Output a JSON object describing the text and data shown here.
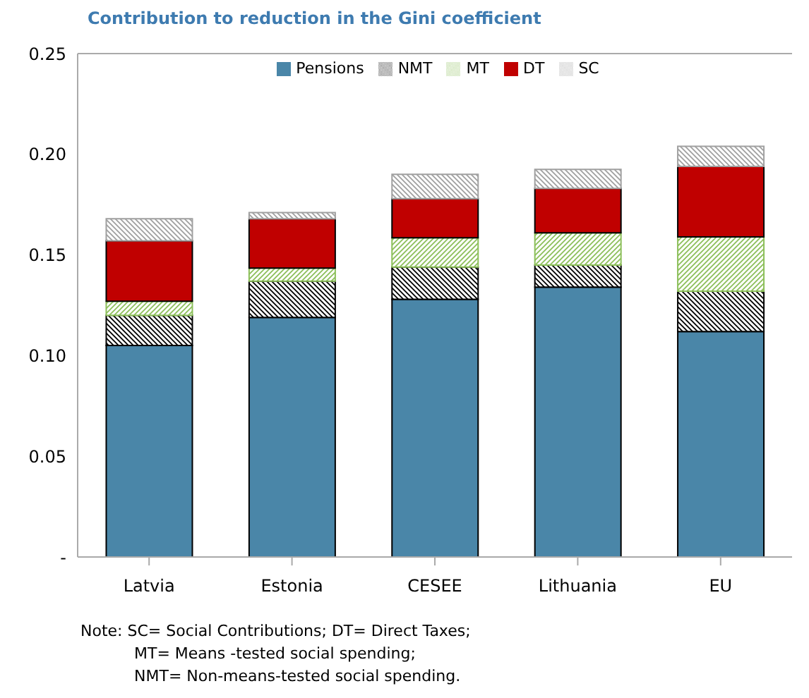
{
  "chart_data": {
    "type": "bar",
    "title": "Contribution to reduction in the Gini coefficient",
    "categories": [
      "Latvia",
      "Estonia",
      "CESEE",
      "Lithuania",
      "EU"
    ],
    "stacked": true,
    "series": [
      {
        "name": "Pensions",
        "color": "#4a86a8",
        "values": [
          0.105,
          0.119,
          0.128,
          0.134,
          0.112
        ]
      },
      {
        "name": "NMT",
        "color": "#000000",
        "values": [
          0.015,
          0.018,
          0.016,
          0.011,
          0.02
        ]
      },
      {
        "name": "MT",
        "color": "#8cbf5a",
        "values": [
          0.007,
          0.0065,
          0.0145,
          0.016,
          0.027
        ]
      },
      {
        "name": "DT",
        "color": "#c00000",
        "values": [
          0.03,
          0.0245,
          0.0195,
          0.022,
          0.035
        ]
      },
      {
        "name": "SC",
        "color": "#a0a0a0",
        "values": [
          0.011,
          0.003,
          0.012,
          0.0095,
          0.01
        ]
      }
    ],
    "ylim": [
      0,
      0.25
    ],
    "yticks": [
      {
        "value": 0,
        "label": "-"
      },
      0.05,
      {
        "value": 0.1,
        "label": "0.10"
      },
      0.15,
      {
        "value": 0.2,
        "label": "0.20"
      },
      0.25
    ],
    "grid": false,
    "legend": "top",
    "annotations": [
      "Note: SC= Social Contributions; DT= Direct Taxes;",
      "MT= Means -tested social spending;",
      "NMT= Non-means-tested social spending."
    ]
  }
}
